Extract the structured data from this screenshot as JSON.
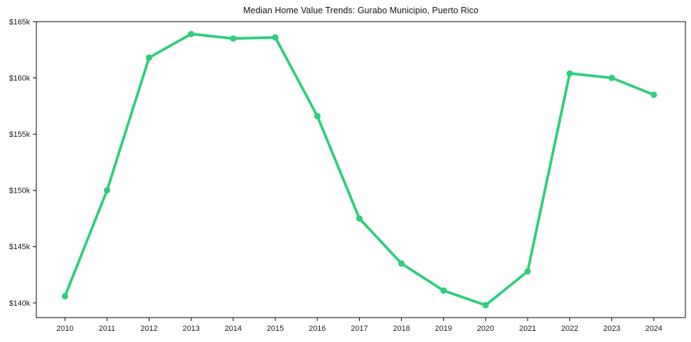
{
  "chart_data": {
    "type": "line",
    "title": "Median Home Value Trends: Gurabo Municipio, Puerto Rico",
    "x": [
      2010,
      2011,
      2012,
      2013,
      2014,
      2015,
      2016,
      2017,
      2018,
      2019,
      2020,
      2021,
      2022,
      2023,
      2024
    ],
    "values": [
      140600,
      150000,
      161800,
      163900,
      163500,
      163600,
      156600,
      147500,
      143500,
      141100,
      139800,
      142800,
      160400,
      160000,
      158500
    ],
    "series_name": "Median Home Value",
    "unit": "USD",
    "xlabel": "",
    "ylabel": "",
    "ylim": [
      138700,
      165000
    ],
    "yticks": [
      140000,
      145000,
      150000,
      155000,
      160000,
      165000
    ],
    "ytick_labels": [
      "$140k",
      "$145k",
      "$150k",
      "$155k",
      "$160k",
      "$165k"
    ],
    "xtick_labels": [
      "2010",
      "2011",
      "2012",
      "2013",
      "2014",
      "2015",
      "2016",
      "2017",
      "2018",
      "2019",
      "2020",
      "2021",
      "2022",
      "2023",
      "2024"
    ],
    "grid": false,
    "legend": null,
    "line_color": "#2fce7c",
    "marker": "circle",
    "axis_color": "#000000",
    "background_color": "#ffffff"
  }
}
